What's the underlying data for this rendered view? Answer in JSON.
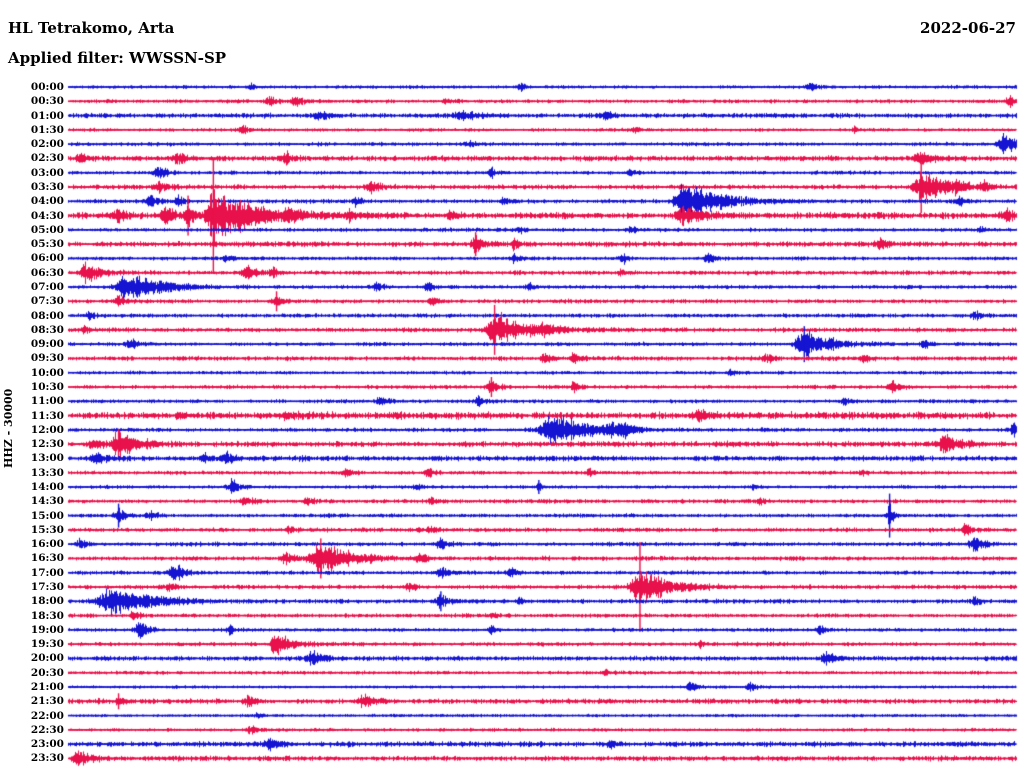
{
  "header": {
    "station": "HL Tetrakomo, Arta",
    "filter": "Applied filter: WWSSN-SP",
    "date": "2022-06-27"
  },
  "chart_data": {
    "type": "line",
    "subtype": "helicorder-seismogram",
    "title": "HL Tetrakomo, Arta",
    "date": "2022-06-27",
    "filter": "WWSSN-SP",
    "scale_label": "HHZ - 30000",
    "row_interval_minutes": 30,
    "x_axis": "minutes within each row, 0 to 30",
    "y_axis": "time of day, one row per 30 minutes",
    "row_color_pattern": [
      "blue",
      "red"
    ],
    "colors": {
      "blue": "#1414d2",
      "red": "#e8114b",
      "text": "#000000",
      "background": "#ffffff"
    },
    "legend": "none",
    "grid": "off",
    "rows": [
      {
        "label": "00:00",
        "noise": 1.1,
        "events": [
          {
            "m": 5.8,
            "a": 2.5,
            "w": 5
          },
          {
            "m": 14.3,
            "a": 3,
            "w": 6
          },
          {
            "m": 23.5,
            "a": 3,
            "w": 8
          }
        ]
      },
      {
        "label": "00:30",
        "noise": 1.2,
        "events": [
          {
            "m": 6.4,
            "a": 5,
            "w": 6
          },
          {
            "m": 7.2,
            "a": 4,
            "w": 7
          },
          {
            "m": 12,
            "a": 2.5,
            "w": 6
          },
          {
            "m": 29.8,
            "a": 5,
            "w": 5
          }
        ]
      },
      {
        "label": "01:00",
        "noise": 1.6,
        "events": [
          {
            "m": 8,
            "a": 2.5,
            "w": 10
          },
          {
            "m": 12.5,
            "a": 3,
            "w": 12
          },
          {
            "m": 17,
            "a": 2.5,
            "w": 8
          }
        ]
      },
      {
        "label": "01:30",
        "noise": 1.1,
        "events": [
          {
            "m": 5.5,
            "a": 4,
            "w": 5
          },
          {
            "m": 17.9,
            "a": 3,
            "w": 5
          },
          {
            "m": 24.9,
            "a": 3,
            "w": 4
          }
        ]
      },
      {
        "label": "02:00",
        "noise": 1.2,
        "events": [
          {
            "m": 12.7,
            "a": 2.5,
            "w": 5
          },
          {
            "m": 29.6,
            "a": 8,
            "w": 8,
            "tail": 20
          }
        ]
      },
      {
        "label": "02:30",
        "noise": 1.8,
        "events": [
          {
            "m": 0.4,
            "a": 4,
            "w": 6
          },
          {
            "m": 3.5,
            "a": 4,
            "w": 8
          },
          {
            "m": 6.9,
            "a": 5,
            "w": 6
          },
          {
            "m": 27,
            "a": 5,
            "w": 9
          }
        ]
      },
      {
        "label": "03:00",
        "noise": 1.2,
        "events": [
          {
            "m": 2.9,
            "a": 5,
            "w": 7
          },
          {
            "m": 13.4,
            "a": 4,
            "w": 5
          },
          {
            "m": 17.8,
            "a": 3,
            "w": 5
          }
        ]
      },
      {
        "label": "03:30",
        "noise": 1.5,
        "events": [
          {
            "m": 2.9,
            "a": 5,
            "w": 7
          },
          {
            "m": 9.6,
            "a": 6,
            "w": 7
          },
          {
            "m": 27,
            "a": 13,
            "w": 9,
            "spike": 26,
            "tail": 25
          },
          {
            "m": 28.1,
            "a": 5,
            "w": 6
          },
          {
            "m": 29,
            "a": 4,
            "w": 5
          }
        ]
      },
      {
        "label": "04:00",
        "noise": 1.3,
        "events": [
          {
            "m": 2.6,
            "a": 6,
            "w": 7
          },
          {
            "m": 3.5,
            "a": 5,
            "w": 5
          },
          {
            "m": 9.1,
            "a": 4,
            "w": 5
          },
          {
            "m": 13.8,
            "a": 3,
            "w": 4
          },
          {
            "m": 19.5,
            "a": 14,
            "w": 11,
            "tail": 38
          },
          {
            "m": 28.2,
            "a": 4,
            "w": 4
          }
        ]
      },
      {
        "label": "04:30",
        "noise": 2.0,
        "events": [
          {
            "m": 1.6,
            "a": 5,
            "w": 6
          },
          {
            "m": 3.1,
            "a": 8,
            "w": 8
          },
          {
            "m": 3.8,
            "a": 10,
            "w": 5,
            "spike": 20
          },
          {
            "m": 4.6,
            "a": 20,
            "w": 9,
            "spike": 58,
            "tail": 45
          },
          {
            "m": 7,
            "a": 5,
            "w": 6
          },
          {
            "m": 8.9,
            "a": 5,
            "w": 6
          },
          {
            "m": 12.1,
            "a": 4,
            "w": 5
          },
          {
            "m": 19.5,
            "a": 7,
            "w": 10,
            "tail": 22
          },
          {
            "m": 29.7,
            "a": 5,
            "w": 6
          }
        ]
      },
      {
        "label": "05:00",
        "noise": 1.2,
        "events": [
          {
            "m": 14.3,
            "a": 3,
            "w": 5
          },
          {
            "m": 17.8,
            "a": 3,
            "w": 5
          },
          {
            "m": 28.9,
            "a": 3,
            "w": 4
          }
        ]
      },
      {
        "label": "05:30",
        "noise": 1.7,
        "events": [
          {
            "m": 12.9,
            "a": 7,
            "w": 6,
            "spike": 12
          },
          {
            "m": 14.1,
            "a": 4,
            "w": 5
          },
          {
            "m": 25.7,
            "a": 4,
            "w": 6
          }
        ]
      },
      {
        "label": "06:00",
        "noise": 1.2,
        "events": [
          {
            "m": 5,
            "a": 3,
            "w": 4
          },
          {
            "m": 14.1,
            "a": 4,
            "w": 5
          },
          {
            "m": 17.6,
            "a": 4,
            "w": 5
          },
          {
            "m": 20.3,
            "a": 5,
            "w": 6
          }
        ]
      },
      {
        "label": "06:30",
        "noise": 1.4,
        "events": [
          {
            "m": 0.6,
            "a": 9,
            "w": 8,
            "tail": 14
          },
          {
            "m": 5.7,
            "a": 7,
            "w": 7
          },
          {
            "m": 6.5,
            "a": 5,
            "w": 5
          },
          {
            "m": 17.5,
            "a": 3,
            "w": 4
          }
        ]
      },
      {
        "label": "07:00",
        "noise": 1.3,
        "events": [
          {
            "m": 1.9,
            "a": 12,
            "w": 13,
            "tail": 32
          },
          {
            "m": 9.8,
            "a": 4,
            "w": 5
          },
          {
            "m": 11.4,
            "a": 4,
            "w": 5
          },
          {
            "m": 14.6,
            "a": 3,
            "w": 4
          }
        ]
      },
      {
        "label": "07:30",
        "noise": 1.3,
        "events": [
          {
            "m": 1.6,
            "a": 4,
            "w": 8
          },
          {
            "m": 6.6,
            "a": 6,
            "w": 5,
            "spike": 10
          },
          {
            "m": 11.5,
            "a": 4,
            "w": 5
          }
        ]
      },
      {
        "label": "08:00",
        "noise": 1.3,
        "events": [
          {
            "m": 0.7,
            "a": 3,
            "w": 5
          },
          {
            "m": 28.7,
            "a": 4,
            "w": 5
          }
        ]
      },
      {
        "label": "08:30",
        "noise": 1.4,
        "events": [
          {
            "m": 0.5,
            "a": 4,
            "w": 5
          },
          {
            "m": 13.5,
            "a": 14,
            "w": 11,
            "spike": 25,
            "tail": 30
          },
          {
            "m": 15.1,
            "a": 5,
            "w": 6
          }
        ]
      },
      {
        "label": "09:00",
        "noise": 1.3,
        "events": [
          {
            "m": 2,
            "a": 5,
            "w": 6
          },
          {
            "m": 23.3,
            "a": 13,
            "w": 10,
            "spike": 18,
            "tail": 22
          },
          {
            "m": 27.1,
            "a": 5,
            "w": 5
          }
        ]
      },
      {
        "label": "09:30",
        "noise": 1.4,
        "events": [
          {
            "m": 15.1,
            "a": 5,
            "w": 6
          },
          {
            "m": 16,
            "a": 4,
            "w": 5
          },
          {
            "m": 22.1,
            "a": 4,
            "w": 6
          },
          {
            "m": 25.2,
            "a": 4,
            "w": 5
          }
        ]
      },
      {
        "label": "10:00",
        "noise": 1.1,
        "events": [
          {
            "m": 21,
            "a": 2.5,
            "w": 6
          }
        ]
      },
      {
        "label": "10:30",
        "noise": 1.3,
        "events": [
          {
            "m": 13.4,
            "a": 6,
            "w": 6,
            "spike": 10
          },
          {
            "m": 16,
            "a": 4,
            "w": 5
          },
          {
            "m": 26.1,
            "a": 5,
            "w": 8
          }
        ]
      },
      {
        "label": "11:00",
        "noise": 1.2,
        "events": [
          {
            "m": 9.9,
            "a": 5,
            "w": 6
          },
          {
            "m": 13,
            "a": 4,
            "w": 5
          },
          {
            "m": 24.6,
            "a": 3,
            "w": 6
          }
        ]
      },
      {
        "label": "11:30",
        "noise": 2.2,
        "events": [
          {
            "m": 7,
            "a": 3,
            "w": 10
          },
          {
            "m": 20,
            "a": 3,
            "w": 8
          }
        ]
      },
      {
        "label": "12:00",
        "noise": 1.3,
        "events": [
          {
            "m": 15.3,
            "a": 12,
            "w": 13,
            "tail": 40
          },
          {
            "m": 17.2,
            "a": 6,
            "w": 8
          },
          {
            "m": 17.6,
            "a": 5,
            "w": 6
          },
          {
            "m": 29.9,
            "a": 8,
            "w": 3
          }
        ]
      },
      {
        "label": "12:30",
        "noise": 1.8,
        "events": [
          {
            "m": 0.8,
            "a": 5,
            "w": 5
          },
          {
            "m": 1.6,
            "a": 10,
            "w": 9,
            "spike": 15,
            "tail": 18
          },
          {
            "m": 27.8,
            "a": 8,
            "w": 12
          }
        ]
      },
      {
        "label": "13:00",
        "noise": 1.7,
        "events": [
          {
            "m": 0.9,
            "a": 4,
            "w": 8
          },
          {
            "m": 4.3,
            "a": 4,
            "w": 5
          },
          {
            "m": 5,
            "a": 6,
            "w": 6
          }
        ]
      },
      {
        "label": "13:30",
        "noise": 1.2,
        "events": [
          {
            "m": 8.8,
            "a": 4,
            "w": 5
          },
          {
            "m": 11.4,
            "a": 4,
            "w": 5
          },
          {
            "m": 16.5,
            "a": 3,
            "w": 4
          },
          {
            "m": 25.1,
            "a": 3,
            "w": 4
          }
        ]
      },
      {
        "label": "14:00",
        "noise": 1.1,
        "events": [
          {
            "m": 5.2,
            "a": 6,
            "w": 7
          },
          {
            "m": 11,
            "a": 3,
            "w": 4
          },
          {
            "m": 14.9,
            "a": 5,
            "w": 3,
            "spike": 7
          },
          {
            "m": 21.7,
            "a": 3,
            "w": 4
          }
        ]
      },
      {
        "label": "14:30",
        "noise": 1.3,
        "events": [
          {
            "m": 5.6,
            "a": 5,
            "w": 6
          },
          {
            "m": 7.6,
            "a": 4,
            "w": 5
          },
          {
            "m": 11.5,
            "a": 3,
            "w": 5
          },
          {
            "m": 21.9,
            "a": 3,
            "w": 5
          }
        ]
      },
      {
        "label": "15:00",
        "noise": 1.2,
        "events": [
          {
            "m": 1.6,
            "a": 7,
            "w": 6,
            "spike": 12
          },
          {
            "m": 2.6,
            "a": 4,
            "w": 6
          },
          {
            "m": 26,
            "a": 13,
            "w": 3,
            "spike": 22
          }
        ]
      },
      {
        "label": "15:30",
        "noise": 1.4,
        "events": [
          {
            "m": 7,
            "a": 3,
            "w": 5
          },
          {
            "m": 11.5,
            "a": 3,
            "w": 6
          },
          {
            "m": 28.4,
            "a": 5,
            "w": 6
          }
        ]
      },
      {
        "label": "16:00",
        "noise": 1.3,
        "events": [
          {
            "m": 0.4,
            "a": 5,
            "w": 5
          },
          {
            "m": 11.8,
            "a": 5,
            "w": 7
          },
          {
            "m": 28.7,
            "a": 8,
            "w": 7
          }
        ]
      },
      {
        "label": "16:30",
        "noise": 1.4,
        "events": [
          {
            "m": 6.9,
            "a": 6,
            "w": 6
          },
          {
            "m": 8,
            "a": 14,
            "w": 12,
            "spike": 20,
            "tail": 28
          },
          {
            "m": 11.1,
            "a": 4,
            "w": 5
          }
        ]
      },
      {
        "label": "17:00",
        "noise": 1.3,
        "events": [
          {
            "m": 3.4,
            "a": 8,
            "w": 8
          },
          {
            "m": 11.8,
            "a": 6,
            "w": 6
          },
          {
            "m": 14,
            "a": 4,
            "w": 5
          }
        ]
      },
      {
        "label": "17:30",
        "noise": 1.4,
        "events": [
          {
            "m": 3.2,
            "a": 4,
            "w": 5
          },
          {
            "m": 10.8,
            "a": 4,
            "w": 5
          },
          {
            "m": 18.1,
            "a": 15,
            "w": 10,
            "spike": 45,
            "tail": 30
          }
        ]
      },
      {
        "label": "18:00",
        "noise": 1.4,
        "events": [
          {
            "m": 1.4,
            "a": 12,
            "w": 18,
            "tail": 38
          },
          {
            "m": 11.8,
            "a": 7,
            "w": 6,
            "spike": 10
          },
          {
            "m": 14.3,
            "a": 4,
            "w": 4
          },
          {
            "m": 28.7,
            "a": 4,
            "w": 5
          }
        ]
      },
      {
        "label": "18:30",
        "noise": 1.3,
        "events": [
          {
            "m": 2.1,
            "a": 4,
            "w": 6
          },
          {
            "m": 13.4,
            "a": 3,
            "w": 4
          }
        ]
      },
      {
        "label": "19:00",
        "noise": 1.2,
        "events": [
          {
            "m": 2.3,
            "a": 8,
            "w": 7
          },
          {
            "m": 5.1,
            "a": 4,
            "w": 4
          },
          {
            "m": 13.4,
            "a": 4,
            "w": 4
          },
          {
            "m": 23.8,
            "a": 4,
            "w": 5
          }
        ]
      },
      {
        "label": "19:30",
        "noise": 1.3,
        "events": [
          {
            "m": 6.5,
            "a": 10,
            "w": 4,
            "tail": 18
          },
          {
            "m": 20,
            "a": 3,
            "w": 4
          }
        ]
      },
      {
        "label": "20:00",
        "noise": 1.5,
        "events": [
          {
            "m": 7.8,
            "a": 6,
            "w": 8
          },
          {
            "m": 24,
            "a": 5,
            "w": 7
          }
        ]
      },
      {
        "label": "20:30",
        "noise": 1.1,
        "events": [
          {
            "m": 17,
            "a": 2.5,
            "w": 5
          }
        ]
      },
      {
        "label": "21:00",
        "noise": 1.0,
        "events": [
          {
            "m": 19.7,
            "a": 4,
            "w": 5
          },
          {
            "m": 21.6,
            "a": 4,
            "w": 5
          }
        ]
      },
      {
        "label": "21:30",
        "noise": 1.6,
        "events": [
          {
            "m": 1.6,
            "a": 5,
            "w": 3,
            "spike": 8
          },
          {
            "m": 5.7,
            "a": 5,
            "w": 6
          },
          {
            "m": 9.4,
            "a": 6,
            "w": 8
          }
        ]
      },
      {
        "label": "22:00",
        "noise": 1.0,
        "events": [
          {
            "m": 6,
            "a": 2,
            "w": 5
          }
        ]
      },
      {
        "label": "22:30",
        "noise": 1.1,
        "events": [
          {
            "m": 5.8,
            "a": 4,
            "w": 5
          }
        ]
      },
      {
        "label": "23:00",
        "noise": 1.7,
        "events": [
          {
            "m": 6.4,
            "a": 4,
            "w": 8
          },
          {
            "m": 17.2,
            "a": 3,
            "w": 6
          }
        ]
      },
      {
        "label": "23:30",
        "noise": 1.6,
        "events": [
          {
            "m": 0.3,
            "a": 7,
            "w": 6,
            "tail": 12
          }
        ]
      }
    ]
  }
}
